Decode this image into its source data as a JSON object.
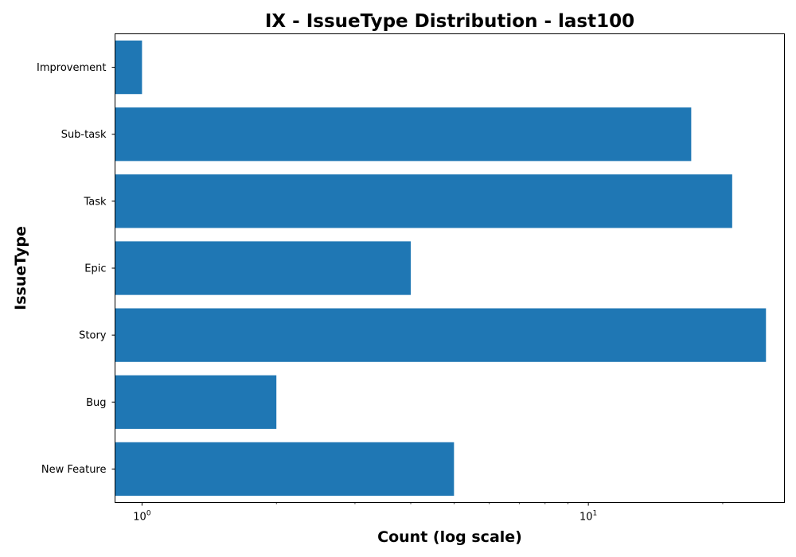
{
  "chart_data": {
    "type": "bar",
    "orientation": "horizontal",
    "title": "IX - IssueType Distribution - last100",
    "xlabel": "Count (log scale)",
    "ylabel": "IssueType",
    "xscale": "log",
    "xlim": [
      0.87,
      27.5
    ],
    "x_ticks": [
      {
        "base": "10",
        "exp": "0",
        "value": 1
      },
      {
        "base": "10",
        "exp": "1",
        "value": 10
      }
    ],
    "categories": [
      "Improvement",
      "Sub-task",
      "Task",
      "Epic",
      "Story",
      "Bug",
      "New Feature"
    ],
    "values": [
      1,
      17,
      21,
      4,
      25,
      2,
      5
    ],
    "bar_color": "#1f77b4",
    "grid": false,
    "legend": false
  }
}
